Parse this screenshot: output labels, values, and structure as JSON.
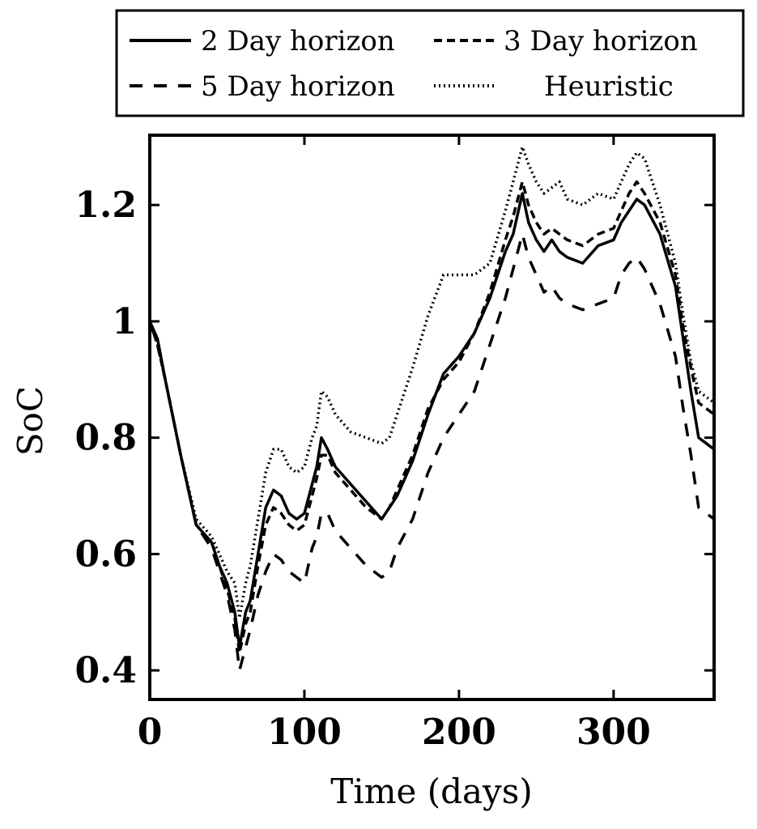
{
  "chart_data": {
    "type": "line",
    "xlabel": "Time (days)",
    "ylabel": "SoC",
    "xlim": [
      0,
      365
    ],
    "ylim": [
      0.35,
      1.32
    ],
    "xticks": [
      0,
      100,
      200,
      300
    ],
    "xtick_labels": [
      "0",
      "100",
      "200",
      "300"
    ],
    "yticks": [
      0.4,
      0.6,
      0.8,
      1.0,
      1.2
    ],
    "ytick_labels": [
      "0.4",
      "0.6",
      "0.8",
      "1",
      "1.2"
    ],
    "grid": false,
    "legend_position": "top-outside",
    "series": [
      {
        "name": "2 Day horizon",
        "style": "solid",
        "x": [
          0,
          5,
          10,
          20,
          30,
          40,
          45,
          50,
          55,
          58,
          62,
          65,
          70,
          75,
          80,
          85,
          90,
          95,
          100,
          105,
          108,
          111,
          115,
          120,
          130,
          140,
          150,
          155,
          160,
          170,
          180,
          190,
          200,
          210,
          220,
          230,
          235,
          241,
          245,
          250,
          255,
          260,
          265,
          270,
          280,
          290,
          300,
          305,
          310,
          315,
          320,
          330,
          340,
          345,
          350,
          355,
          360,
          365
        ],
        "y": [
          1.0,
          0.97,
          0.9,
          0.77,
          0.65,
          0.62,
          0.58,
          0.55,
          0.5,
          0.44,
          0.5,
          0.52,
          0.6,
          0.68,
          0.71,
          0.7,
          0.67,
          0.66,
          0.67,
          0.72,
          0.75,
          0.8,
          0.78,
          0.75,
          0.72,
          0.69,
          0.66,
          0.68,
          0.7,
          0.76,
          0.84,
          0.91,
          0.94,
          0.98,
          1.04,
          1.12,
          1.15,
          1.22,
          1.17,
          1.14,
          1.12,
          1.14,
          1.12,
          1.11,
          1.1,
          1.13,
          1.14,
          1.17,
          1.19,
          1.21,
          1.2,
          1.15,
          1.06,
          0.97,
          0.88,
          0.8,
          0.79,
          0.78
        ]
      },
      {
        "name": "3 Day horizon",
        "style": "dashed",
        "x": [
          0,
          5,
          10,
          20,
          30,
          40,
          45,
          50,
          55,
          58,
          62,
          65,
          70,
          75,
          80,
          85,
          90,
          95,
          100,
          105,
          108,
          111,
          115,
          120,
          130,
          140,
          150,
          155,
          160,
          170,
          180,
          190,
          200,
          210,
          220,
          230,
          235,
          241,
          245,
          250,
          255,
          260,
          265,
          270,
          280,
          290,
          300,
          305,
          310,
          315,
          320,
          330,
          340,
          345,
          350,
          355,
          360,
          365
        ],
        "y": [
          1.0,
          0.96,
          0.9,
          0.77,
          0.65,
          0.62,
          0.58,
          0.54,
          0.49,
          0.43,
          0.48,
          0.5,
          0.58,
          0.65,
          0.68,
          0.67,
          0.65,
          0.64,
          0.65,
          0.7,
          0.73,
          0.77,
          0.77,
          0.74,
          0.71,
          0.68,
          0.66,
          0.68,
          0.71,
          0.77,
          0.85,
          0.9,
          0.93,
          0.98,
          1.05,
          1.14,
          1.18,
          1.24,
          1.2,
          1.17,
          1.15,
          1.16,
          1.15,
          1.14,
          1.13,
          1.15,
          1.16,
          1.19,
          1.22,
          1.24,
          1.22,
          1.17,
          1.08,
          0.99,
          0.92,
          0.86,
          0.85,
          0.84
        ]
      },
      {
        "name": "5 Day horizon",
        "style": "longdash",
        "x": [
          0,
          5,
          10,
          20,
          30,
          40,
          45,
          50,
          55,
          58,
          60,
          65,
          70,
          75,
          80,
          85,
          90,
          95,
          100,
          105,
          108,
          111,
          115,
          120,
          130,
          140,
          150,
          155,
          160,
          170,
          180,
          190,
          200,
          210,
          220,
          230,
          235,
          241,
          245,
          250,
          255,
          260,
          265,
          270,
          280,
          290,
          300,
          305,
          310,
          315,
          320,
          330,
          340,
          345,
          350,
          355,
          360,
          365
        ],
        "y": [
          1.0,
          0.96,
          0.9,
          0.77,
          0.65,
          0.61,
          0.57,
          0.53,
          0.47,
          0.4,
          0.42,
          0.47,
          0.53,
          0.57,
          0.6,
          0.59,
          0.57,
          0.56,
          0.55,
          0.61,
          0.63,
          0.67,
          0.67,
          0.64,
          0.61,
          0.58,
          0.56,
          0.57,
          0.61,
          0.66,
          0.74,
          0.8,
          0.84,
          0.88,
          0.96,
          1.04,
          1.09,
          1.15,
          1.11,
          1.08,
          1.05,
          1.06,
          1.04,
          1.03,
          1.02,
          1.03,
          1.04,
          1.08,
          1.1,
          1.11,
          1.09,
          1.03,
          0.94,
          0.85,
          0.77,
          0.68,
          0.67,
          0.66
        ]
      },
      {
        "name": "Heuristic",
        "style": "dotted",
        "x": [
          0,
          5,
          10,
          20,
          30,
          40,
          45,
          50,
          55,
          58,
          62,
          65,
          70,
          75,
          80,
          85,
          90,
          95,
          100,
          105,
          108,
          111,
          115,
          120,
          130,
          140,
          150,
          155,
          160,
          170,
          180,
          190,
          200,
          210,
          220,
          230,
          235,
          241,
          245,
          250,
          255,
          260,
          265,
          270,
          280,
          290,
          300,
          305,
          310,
          315,
          320,
          330,
          340,
          345,
          350,
          355,
          360,
          365
        ],
        "y": [
          1.0,
          0.97,
          0.9,
          0.77,
          0.66,
          0.63,
          0.6,
          0.57,
          0.55,
          0.49,
          0.55,
          0.58,
          0.66,
          0.74,
          0.78,
          0.78,
          0.75,
          0.74,
          0.75,
          0.8,
          0.82,
          0.88,
          0.87,
          0.84,
          0.81,
          0.8,
          0.79,
          0.8,
          0.84,
          0.92,
          1.01,
          1.08,
          1.08,
          1.08,
          1.1,
          1.19,
          1.24,
          1.3,
          1.27,
          1.24,
          1.22,
          1.23,
          1.24,
          1.21,
          1.2,
          1.22,
          1.21,
          1.24,
          1.27,
          1.29,
          1.28,
          1.2,
          1.1,
          1.01,
          0.93,
          0.88,
          0.87,
          0.86
        ]
      }
    ]
  }
}
